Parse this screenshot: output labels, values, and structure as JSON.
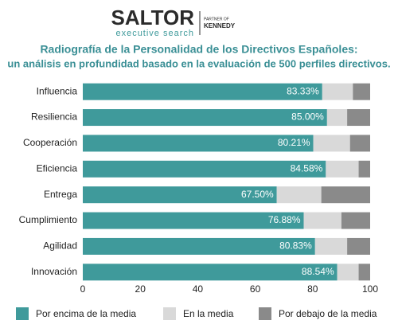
{
  "logo": {
    "name": "SALTOR",
    "tagline": "executive search",
    "partner": "PARTNER OF",
    "partner_name": "KENNEDY"
  },
  "chart_data": {
    "type": "stacked_bar_horizontal",
    "title": "Radiografía de la Personalidad de los Directivos Españoles:",
    "subtitle": "un análisis en profundidad basado en la evaluación de 500 perfiles directivos.",
    "categories": [
      "Influencia",
      "Resiliencia",
      "Cooperación",
      "Eficiencia",
      "Entrega",
      "Cumplimiento",
      "Agilidad",
      "Innovación"
    ],
    "series": [
      {
        "name": "Por encima de la media",
        "color": "#3f9a9b",
        "values": [
          83.33,
          85.0,
          80.21,
          84.58,
          67.5,
          76.88,
          80.83,
          88.54
        ],
        "value_labels": [
          "83.33%",
          "85.00%",
          "80.21%",
          "84.58%",
          "67.50%",
          "76.88%",
          "80.83%",
          "88.54%"
        ]
      },
      {
        "name": "En la media",
        "color": "#d9d9d9",
        "values": [
          10.67,
          7,
          12.79,
          11.42,
          15.5,
          13.12,
          11.17,
          7.46
        ]
      },
      {
        "name": "Por debajo de la media",
        "color": "#8a8a8a",
        "values": [
          6,
          8,
          7,
          4,
          17,
          10,
          8,
          4
        ]
      }
    ],
    "xlim": [
      0,
      100
    ],
    "xticks": [
      0,
      20,
      40,
      60,
      80,
      100
    ],
    "grid": false
  }
}
